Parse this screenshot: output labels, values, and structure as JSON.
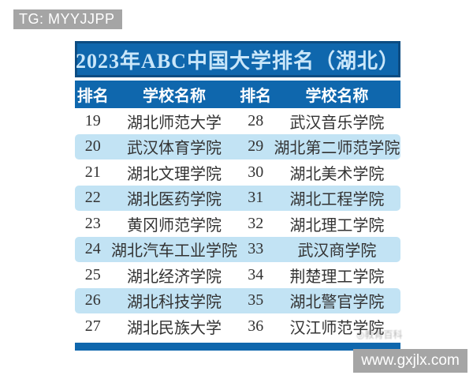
{
  "overlays": {
    "tg_label": "TG: MYYJJPP",
    "url_label": "www.gxjlx.com",
    "faint_watermark": "◎教育百科"
  },
  "colors": {
    "header_blue": "#0f67ad",
    "title_border": "#0c4c82",
    "title_text": "#c9e6f9",
    "stripe_blue": "#c2e3f4",
    "body_text": "#333333",
    "overlay_gray": "#a5a5a5",
    "page_bg": "#ffffff"
  },
  "chart_data": {
    "type": "table",
    "title": "2023年ABC中国大学排名（湖北）",
    "columns": [
      "排名",
      "学校名称",
      "排名",
      "学校名称"
    ],
    "rows": [
      [
        "19",
        "湖北师范大学",
        "28",
        "武汉音乐学院"
      ],
      [
        "20",
        "武汉体育学院",
        "29",
        "湖北第二师范学院"
      ],
      [
        "21",
        "湖北文理学院",
        "30",
        "湖北美术学院"
      ],
      [
        "22",
        "湖北医药学院",
        "31",
        "湖北工程学院"
      ],
      [
        "23",
        "黄冈师范学院",
        "32",
        "湖北理工学院"
      ],
      [
        "24",
        "湖北汽车工业学院",
        "33",
        "武汉商学院"
      ],
      [
        "25",
        "湖北经济学院",
        "34",
        "荆楚理工学院"
      ],
      [
        "26",
        "湖北科技学院",
        "35",
        "湖北警官学院"
      ],
      [
        "27",
        "湖北民族大学",
        "36",
        "汉江师范学院"
      ]
    ],
    "layout": {
      "striped_row_indices": [
        1,
        3,
        5,
        7
      ],
      "column_widths_pct": [
        11,
        39,
        11,
        39
      ],
      "legend": false,
      "grid": false
    }
  }
}
